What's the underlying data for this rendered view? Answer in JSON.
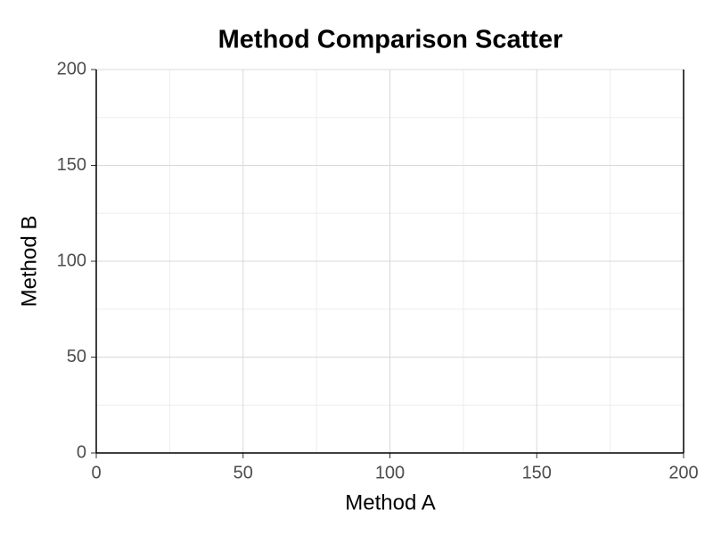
{
  "chart_data": {
    "type": "scatter",
    "title": "Method Comparison Scatter",
    "x_label": "Method A",
    "y_label": "Method B",
    "series": [
      {
        "x": [],
        "values": []
      }
    ],
    "xlim": [
      0,
      200
    ],
    "ylim": [
      0,
      200
    ],
    "xticks": [
      0,
      50,
      100,
      150,
      200
    ],
    "yticks": [
      0,
      50,
      100,
      150,
      200
    ],
    "minor_xticks": [
      25,
      75,
      125,
      175
    ],
    "minor_yticks": [
      25,
      75,
      125,
      175
    ],
    "grid": true
  }
}
